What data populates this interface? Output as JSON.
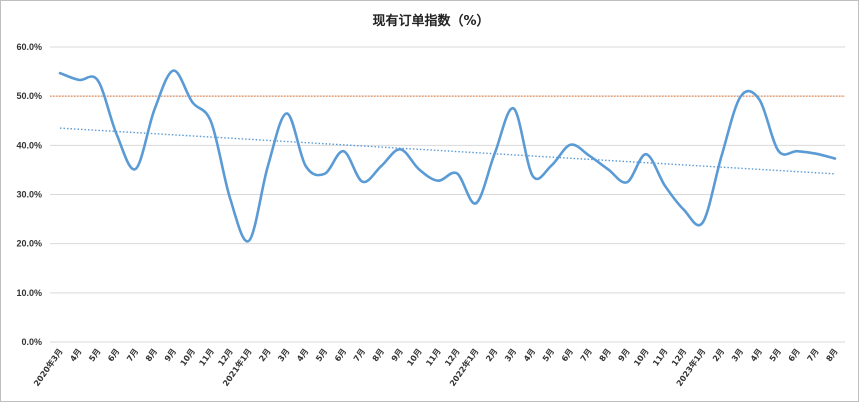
{
  "chart_data": {
    "type": "line",
    "title": "现有订单指数（%）",
    "xlabel": "",
    "ylabel": "",
    "ylim": [
      0,
      60
    ],
    "y_ticks": [
      0,
      10,
      20,
      30,
      40,
      50,
      60
    ],
    "y_tick_labels": [
      "0.0%",
      "10.0%",
      "20.0%",
      "30.0%",
      "40.0%",
      "50.0%",
      "60.0%"
    ],
    "grid": "horizontal",
    "reference_line": {
      "value": 50,
      "color": "#e8702a",
      "style": "dotted"
    },
    "categories": [
      "2020年3月",
      "4月",
      "5月",
      "6月",
      "7月",
      "8月",
      "9月",
      "10月",
      "11月",
      "12月",
      "2021年1月",
      "2月",
      "3月",
      "4月",
      "5月",
      "6月",
      "7月",
      "8月",
      "9月",
      "10月",
      "11月",
      "12月",
      "2022年1月",
      "2月",
      "3月",
      "4月",
      "5月",
      "6月",
      "7月",
      "8月",
      "9月",
      "10月",
      "11月",
      "12月",
      "2023年1月",
      "2月",
      "3月",
      "4月",
      "5月",
      "6月",
      "7月",
      "8月"
    ],
    "series": [
      {
        "name": "",
        "color": "#5b9bd5",
        "values": [
          54.7,
          53.3,
          53.2,
          42.2,
          35.2,
          47.3,
          55.2,
          48.8,
          44.7,
          29.2,
          20.6,
          35.8,
          46.5,
          35.8,
          34.2,
          38.8,
          32.6,
          35.8,
          39.2,
          35.1,
          32.8,
          34.3,
          28.2,
          38.4,
          47.5,
          33.8,
          35.9,
          40.1,
          37.9,
          35.1,
          32.5,
          38.2,
          31.8,
          26.9,
          24.3,
          37.9,
          49.9,
          49.3,
          38.9,
          38.8,
          38.3,
          37.3
        ]
      }
    ],
    "trendline": {
      "type": "linear",
      "style": "dotted",
      "color": "#5b9bd5",
      "start": 43.5,
      "end": 34.2
    }
  }
}
